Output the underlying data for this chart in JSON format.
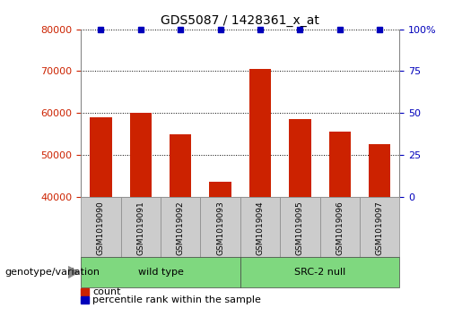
{
  "title": "GDS5087 / 1428361_x_at",
  "samples": [
    "GSM1019090",
    "GSM1019091",
    "GSM1019092",
    "GSM1019093",
    "GSM1019094",
    "GSM1019095",
    "GSM1019096",
    "GSM1019097"
  ],
  "counts": [
    59000,
    60000,
    55000,
    43500,
    70500,
    58500,
    55500,
    52500
  ],
  "percentiles": [
    100,
    100,
    100,
    100,
    100,
    100,
    100,
    100
  ],
  "groups": [
    {
      "label": "wild type",
      "start": 0,
      "end": 4,
      "color": "#7FD87F"
    },
    {
      "label": "SRC-2 null",
      "start": 4,
      "end": 8,
      "color": "#7FD87F"
    }
  ],
  "bar_color": "#CC2200",
  "dot_color": "#0000BB",
  "ymin": 40000,
  "ymax": 80000,
  "yticks_left": [
    40000,
    50000,
    60000,
    70000,
    80000
  ],
  "yticks_right": [
    0,
    25,
    50,
    75,
    100
  ],
  "ylabel_color_left": "#CC2200",
  "ylabel_color_right": "#0000BB",
  "legend_count_label": "count",
  "legend_pct_label": "percentile rank within the sample",
  "genotype_label": "genotype/variation",
  "bar_width": 0.55,
  "dot_size": 5,
  "sample_box_color": "#CCCCCC",
  "sample_box_edge": "#888888"
}
